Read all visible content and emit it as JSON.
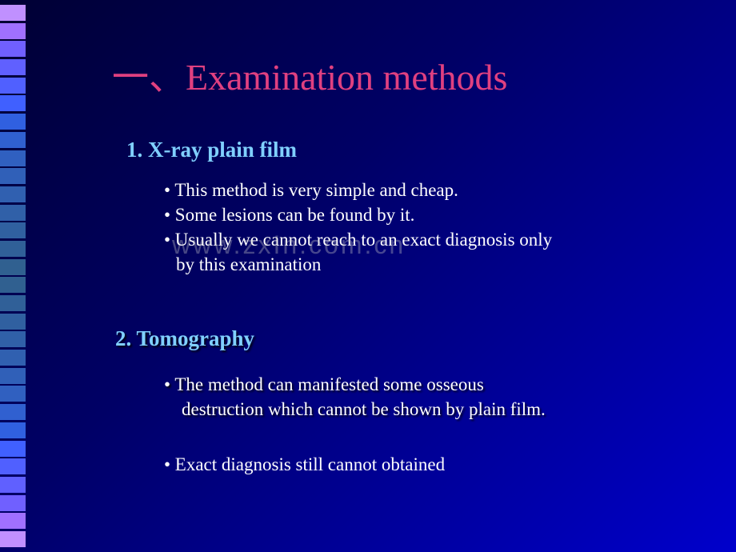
{
  "title": "一、Examination methods",
  "section1": {
    "heading": "1.  X-ray plain film",
    "bullets": [
      "•  This method is very simple and cheap.",
      "•  Some  lesions can be  found by  it.",
      "•  Usually we cannot reach to an exact diagnosis only",
      "by this examination"
    ]
  },
  "section2": {
    "heading": "2.  Tomography",
    "bullets_a": [
      "•  The method can manifested some osseous",
      "destruction which cannot be shown by plain film."
    ],
    "bullets_b": [
      "•  Exact diagnosis still cannot obtained"
    ]
  },
  "watermark": "www.zxIn.com.cn",
  "styling": {
    "title_color": "#e04080",
    "title_fontsize": 46,
    "subheading_color": "#80d0ff",
    "subheading_fontsize": 27,
    "body_text_color": "#ffffff",
    "body_fontsize": 23,
    "background_gradient_start": "#000033",
    "background_gradient_mid": "#000066",
    "background_gradient_end": "#0000cc",
    "watermark_color": "rgba(200,200,200,0.35)",
    "square_colors": [
      "#c090ff",
      "#a070ff",
      "#7060ff",
      "#6060ff",
      "#5060ff",
      "#4060ff",
      "#3060e0",
      "#3060d0",
      "#3060c0",
      "#3060b8",
      "#3060b0",
      "#3060a8",
      "#3060a0",
      "#306098",
      "#306090",
      "#306090",
      "#306098",
      "#3060a0",
      "#3060a8",
      "#3060b0",
      "#3060b8",
      "#3060c0",
      "#3060d0",
      "#3060e0",
      "#4060ff",
      "#5060ff",
      "#6060ff",
      "#7060ff",
      "#a070ff",
      "#c090ff"
    ]
  }
}
